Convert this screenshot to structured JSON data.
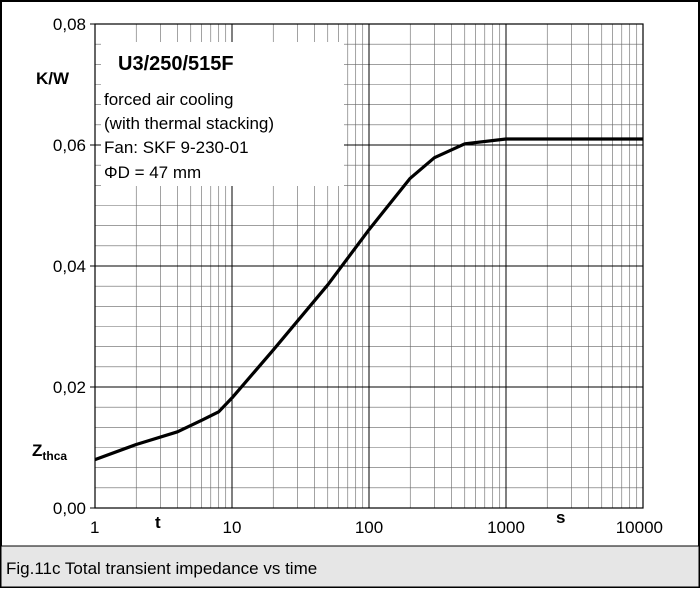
{
  "chart_data": {
    "type": "line",
    "x": [
      1,
      2,
      4,
      6,
      8,
      10,
      20,
      50,
      100,
      200,
      300,
      500,
      1000,
      10000
    ],
    "values": [
      0.008,
      0.0105,
      0.0126,
      0.0145,
      0.0159,
      0.0182,
      0.0261,
      0.0369,
      0.046,
      0.0545,
      0.0579,
      0.0602,
      0.061,
      0.061
    ],
    "color": "#000000",
    "xlog": true,
    "xlim": [
      1,
      10000
    ],
    "xticks": [
      1,
      10,
      100,
      1000,
      10000
    ],
    "ylim": [
      0,
      0.08
    ],
    "yticks": [
      {
        "value": 0,
        "label": "0,00"
      },
      {
        "value": 0.02,
        "label": "0,02"
      },
      {
        "value": 0.04,
        "label": "0,04"
      },
      {
        "value": 0.06,
        "label": "0,06"
      },
      {
        "value": 0.08,
        "label": "0,08"
      }
    ],
    "grid": true,
    "y_unit": "K/W",
    "y_symbol": "Z",
    "y_symbol_subscript": "thca",
    "x_symbol": "t",
    "x_unit": "s",
    "annotation": {
      "title": "U3/250/515F",
      "lines": [
        "forced air cooling",
        "(with thermal stacking)",
        "Fan: SKF 9-230-01",
        "ΦD = 47 mm"
      ]
    },
    "caption": "Fig.11c Total transient impedance vs time"
  }
}
